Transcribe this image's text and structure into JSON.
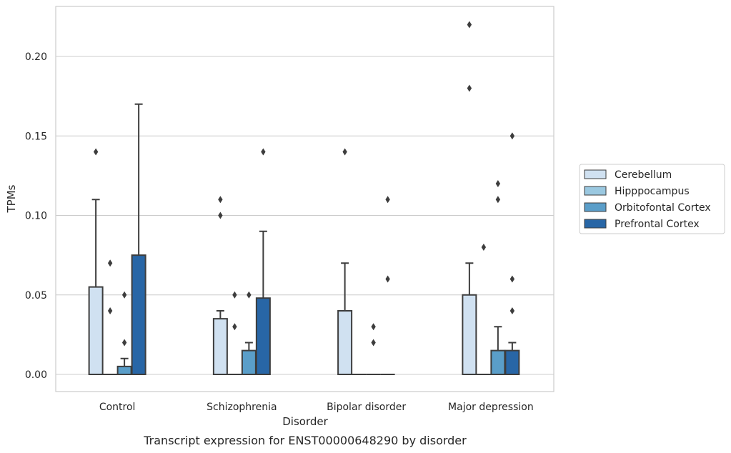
{
  "caption": "Transcript expression for ENST00000648290 by disorder",
  "chart_data": {
    "type": "box",
    "title": "",
    "xlabel": "Disorder",
    "ylabel": "TPMs",
    "ylim": [
      -0.01,
      0.232
    ],
    "yticks": [
      0.0,
      0.05,
      0.1,
      0.15,
      0.2
    ],
    "ytick_labels": [
      "0.00",
      "0.05",
      "0.10",
      "0.15",
      "0.20"
    ],
    "grid": "horizontal",
    "legend_position": "right",
    "categories": [
      "Control",
      "Schizophrenia",
      "Bipolar disorder",
      "Major depression"
    ],
    "series": [
      {
        "name": "Cerebellum",
        "color": "#d0e1f1",
        "boxes": [
          {
            "q1": 0.0,
            "q3": 0.055,
            "median": 0.0,
            "whisker_low": 0.0,
            "whisker_high": 0.11,
            "outliers": [
              0.14
            ]
          },
          {
            "q1": 0.0,
            "q3": 0.035,
            "median": 0.0,
            "whisker_low": 0.0,
            "whisker_high": 0.04,
            "outliers": [
              0.1,
              0.11
            ]
          },
          {
            "q1": 0.0,
            "q3": 0.04,
            "median": 0.0,
            "whisker_low": 0.0,
            "whisker_high": 0.07,
            "outliers": [
              0.14
            ]
          },
          {
            "q1": 0.0,
            "q3": 0.05,
            "median": 0.0,
            "whisker_low": 0.0,
            "whisker_high": 0.07,
            "outliers": [
              0.18,
              0.22
            ]
          }
        ]
      },
      {
        "name": "Hipppocampus",
        "color": "#9ac8e0",
        "boxes": [
          {
            "q1": 0.0,
            "q3": 0.0,
            "median": 0.0,
            "whisker_low": 0.0,
            "whisker_high": 0.0,
            "outliers": [
              0.04,
              0.07
            ]
          },
          {
            "q1": 0.0,
            "q3": 0.0,
            "median": 0.0,
            "whisker_low": 0.0,
            "whisker_high": 0.0,
            "outliers": [
              0.03,
              0.05
            ]
          },
          {
            "q1": 0.0,
            "q3": 0.0,
            "median": 0.0,
            "whisker_low": 0.0,
            "whisker_high": 0.0,
            "outliers": []
          },
          {
            "q1": 0.0,
            "q3": 0.0,
            "median": 0.0,
            "whisker_low": 0.0,
            "whisker_high": 0.0,
            "outliers": [
              0.08
            ]
          }
        ]
      },
      {
        "name": "Orbitofontal Cortex",
        "color": "#5a9ec9",
        "boxes": [
          {
            "q1": 0.0,
            "q3": 0.005,
            "median": 0.0,
            "whisker_low": 0.0,
            "whisker_high": 0.01,
            "outliers": [
              0.02,
              0.05
            ]
          },
          {
            "q1": 0.0,
            "q3": 0.015,
            "median": 0.0,
            "whisker_low": 0.0,
            "whisker_high": 0.02,
            "outliers": [
              0.05
            ]
          },
          {
            "q1": 0.0,
            "q3": 0.0,
            "median": 0.0,
            "whisker_low": 0.0,
            "whisker_high": 0.0,
            "outliers": [
              0.02,
              0.03
            ]
          },
          {
            "q1": 0.0,
            "q3": 0.015,
            "median": 0.0,
            "whisker_low": 0.0,
            "whisker_high": 0.03,
            "outliers": [
              0.11,
              0.12
            ]
          }
        ]
      },
      {
        "name": "Prefrontal Cortex",
        "color": "#2866a6",
        "boxes": [
          {
            "q1": 0.0,
            "q3": 0.075,
            "median": 0.0,
            "whisker_low": 0.0,
            "whisker_high": 0.17,
            "outliers": []
          },
          {
            "q1": 0.0,
            "q3": 0.048,
            "median": 0.0,
            "whisker_low": 0.0,
            "whisker_high": 0.09,
            "outliers": [
              0.14
            ]
          },
          {
            "q1": 0.0,
            "q3": 0.0,
            "median": 0.0,
            "whisker_low": 0.0,
            "whisker_high": 0.0,
            "outliers": [
              0.06,
              0.11
            ]
          },
          {
            "q1": 0.0,
            "q3": 0.015,
            "median": 0.0,
            "whisker_low": 0.0,
            "whisker_high": 0.02,
            "outliers": [
              0.04,
              0.06,
              0.15
            ]
          }
        ]
      }
    ]
  }
}
